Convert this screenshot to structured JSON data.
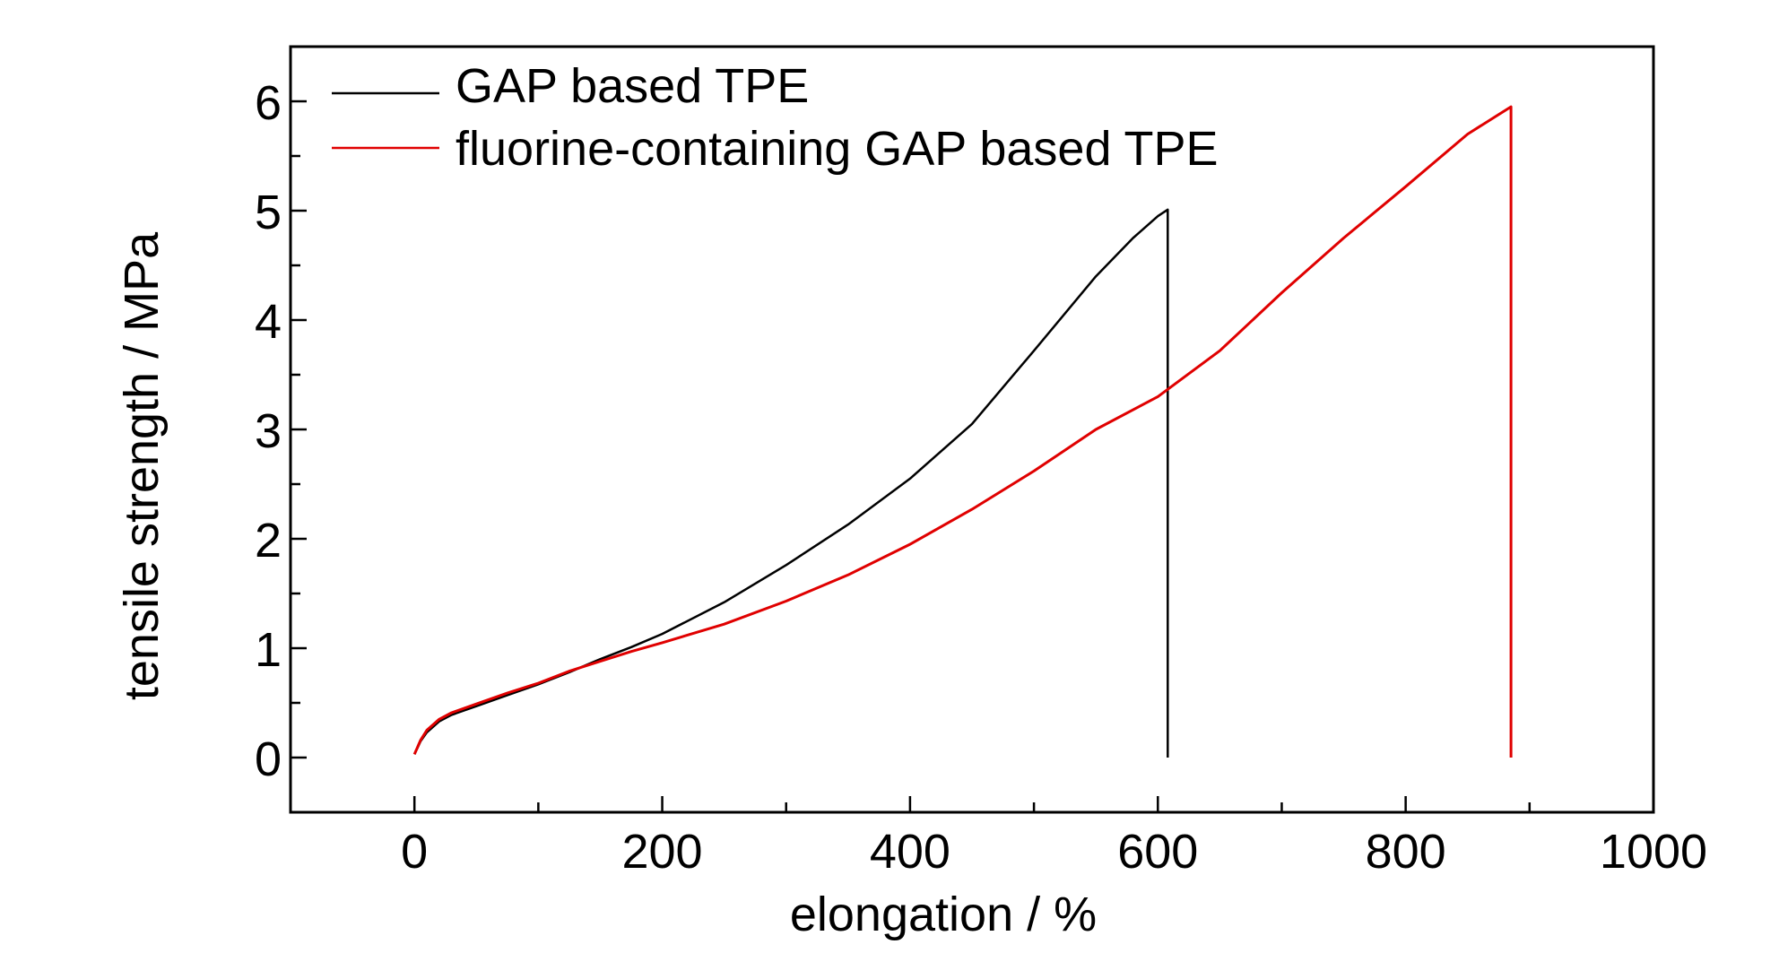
{
  "chart_data": {
    "type": "line",
    "xlabel": "elongation / %",
    "ylabel": "tensile strength / MPa",
    "xlim": [
      -100,
      1000
    ],
    "ylim": [
      -0.5,
      6.5
    ],
    "xticks": [
      0,
      200,
      400,
      600,
      800,
      1000
    ],
    "yticks": [
      0,
      1,
      2,
      3,
      4,
      5,
      6
    ],
    "x_minor_step": 100,
    "y_minor_step": 0.5,
    "grid": false,
    "legend_position": "top-left",
    "series": [
      {
        "name": "GAP based TPE",
        "color": "#000000",
        "x": [
          0,
          5,
          10,
          20,
          30,
          50,
          75,
          100,
          125,
          150,
          175,
          200,
          250,
          300,
          350,
          400,
          450,
          500,
          550,
          580,
          600,
          608,
          608
        ],
        "y": [
          0.03,
          0.15,
          0.23,
          0.33,
          0.39,
          0.47,
          0.57,
          0.67,
          0.78,
          0.9,
          1.01,
          1.13,
          1.42,
          1.76,
          2.13,
          2.55,
          3.05,
          3.72,
          4.4,
          4.75,
          4.95,
          5.01,
          0.0
        ]
      },
      {
        "name": "fluorine-containing GAP based TPE",
        "color": "#e00000",
        "x": [
          0,
          5,
          10,
          20,
          30,
          50,
          75,
          100,
          125,
          150,
          175,
          200,
          250,
          300,
          350,
          400,
          450,
          500,
          550,
          600,
          650,
          700,
          750,
          800,
          850,
          885,
          885
        ],
        "y": [
          0.03,
          0.16,
          0.25,
          0.35,
          0.41,
          0.49,
          0.59,
          0.68,
          0.79,
          0.88,
          0.97,
          1.05,
          1.22,
          1.43,
          1.67,
          1.95,
          2.27,
          2.62,
          3.0,
          3.3,
          3.72,
          4.25,
          4.75,
          5.22,
          5.7,
          5.95,
          0.0
        ]
      }
    ]
  }
}
